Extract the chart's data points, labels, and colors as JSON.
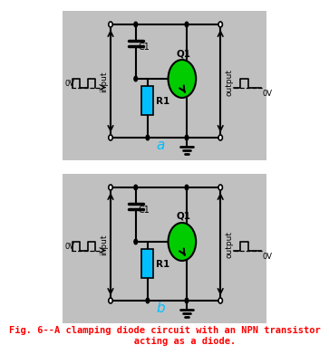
{
  "bg_color": "#c0c0c0",
  "white_bg": "#ffffff",
  "line_color": "#000000",
  "blue_color": "#00bfff",
  "green_color": "#00cc00",
  "red_color": "#ff0000",
  "label_a": "a",
  "label_b": "b",
  "label_c1": "C1",
  "label_q1": "Q1",
  "label_r1": "R1",
  "label_0v": "0V",
  "label_input": "input",
  "label_output": "output",
  "caption": "Fig. 6--A clamping diode circuit with an NPN transistor\n       acting as a diode."
}
